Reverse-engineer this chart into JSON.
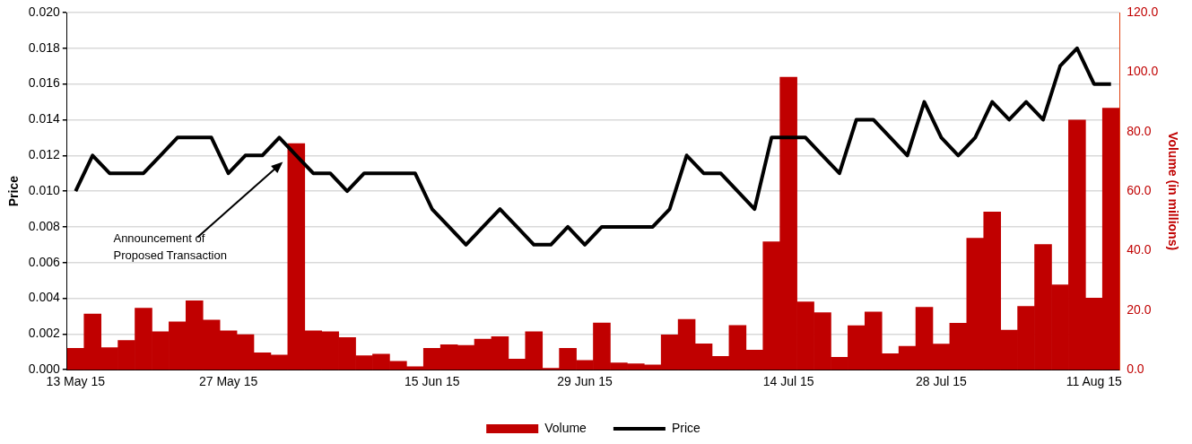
{
  "chart_data": {
    "type": "bar",
    "ylabel": "Price",
    "y2label": "Volume (in millions)",
    "categories": [
      "13 May 15",
      null,
      null,
      null,
      null,
      null,
      null,
      null,
      null,
      "27 May 15",
      null,
      null,
      null,
      null,
      null,
      null,
      null,
      null,
      null,
      null,
      null,
      "15 Jun 15",
      null,
      null,
      null,
      null,
      null,
      null,
      null,
      null,
      "29 Jun 15",
      null,
      null,
      null,
      null,
      null,
      null,
      null,
      null,
      null,
      null,
      null,
      "14 Jul 15",
      null,
      null,
      null,
      null,
      null,
      null,
      null,
      null,
      "28 Jul 15",
      null,
      null,
      null,
      null,
      null,
      null,
      null,
      null,
      "11 Aug 15",
      null
    ],
    "series": [
      {
        "name": "Volume",
        "axis": "y2",
        "color": "#c00000",
        "values": [
          7.2,
          18.7,
          7.4,
          9.8,
          20.7,
          12.8,
          16.1,
          23.2,
          16.7,
          13.1,
          11.8,
          5.7,
          4.9,
          76.0,
          13.1,
          12.8,
          10.8,
          4.7,
          5.2,
          2.8,
          1.0,
          7.2,
          8.4,
          8.2,
          10.3,
          11.1,
          3.6,
          12.8,
          0.5,
          7.2,
          3.1,
          15.7,
          2.3,
          2.0,
          1.6,
          11.7,
          16.9,
          8.7,
          4.5,
          14.9,
          6.6,
          43.0,
          98.3,
          22.8,
          19.2,
          4.2,
          14.8,
          19.4,
          5.4,
          7.9,
          21.0,
          8.6,
          15.6,
          44.2,
          53.0,
          13.3,
          21.3,
          42.1,
          28.5,
          83.9,
          24.1,
          87.9
        ]
      },
      {
        "name": "Price",
        "type": "line",
        "color": "#000000",
        "values": [
          0.01,
          0.012,
          0.011,
          0.011,
          0.011,
          0.012,
          0.013,
          0.013,
          0.013,
          0.011,
          0.012,
          0.012,
          0.013,
          0.012,
          0.011,
          0.011,
          0.01,
          0.011,
          0.011,
          0.011,
          0.011,
          0.009,
          0.008,
          0.007,
          0.008,
          0.009,
          0.008,
          0.007,
          0.007,
          0.008,
          0.007,
          0.008,
          0.008,
          0.008,
          0.008,
          0.009,
          0.012,
          0.011,
          0.011,
          0.01,
          0.009,
          0.013,
          0.013,
          0.013,
          0.012,
          0.011,
          0.014,
          0.014,
          0.013,
          0.012,
          0.015,
          0.013,
          0.012,
          0.013,
          0.015,
          0.014,
          0.015,
          0.014,
          0.017,
          0.018,
          0.016,
          0.016
        ]
      }
    ],
    "ylim": [
      0,
      0.02
    ],
    "yticks": [
      {
        "value": 0,
        "label": "0.000"
      },
      {
        "value": 0.002,
        "label": "0.002"
      },
      {
        "value": 0.004,
        "label": "0.004"
      },
      {
        "value": 0.006,
        "label": "0.006"
      },
      {
        "value": 0.008,
        "label": "0.008"
      },
      {
        "value": 0.01,
        "label": "0.010"
      },
      {
        "value": 0.012,
        "label": "0.012"
      },
      {
        "value": 0.014,
        "label": "0.014"
      },
      {
        "value": 0.016,
        "label": "0.016"
      },
      {
        "value": 0.018,
        "label": "0.018"
      },
      {
        "value": 0.02,
        "label": "0.020"
      }
    ],
    "y2lim": [
      0,
      120
    ],
    "y2ticks": [
      {
        "value": 0,
        "label": "0.0"
      },
      {
        "value": 20,
        "label": "20.0"
      },
      {
        "value": 40,
        "label": "40.0"
      },
      {
        "value": 60,
        "label": "60.0"
      },
      {
        "value": 80,
        "label": "80.0"
      },
      {
        "value": 100,
        "label": "100.0"
      },
      {
        "value": 120,
        "label": "120.0"
      }
    ],
    "grid": "y",
    "legend": "bottom",
    "annotations": [
      "Announcement of\nProposed Transaction"
    ]
  }
}
